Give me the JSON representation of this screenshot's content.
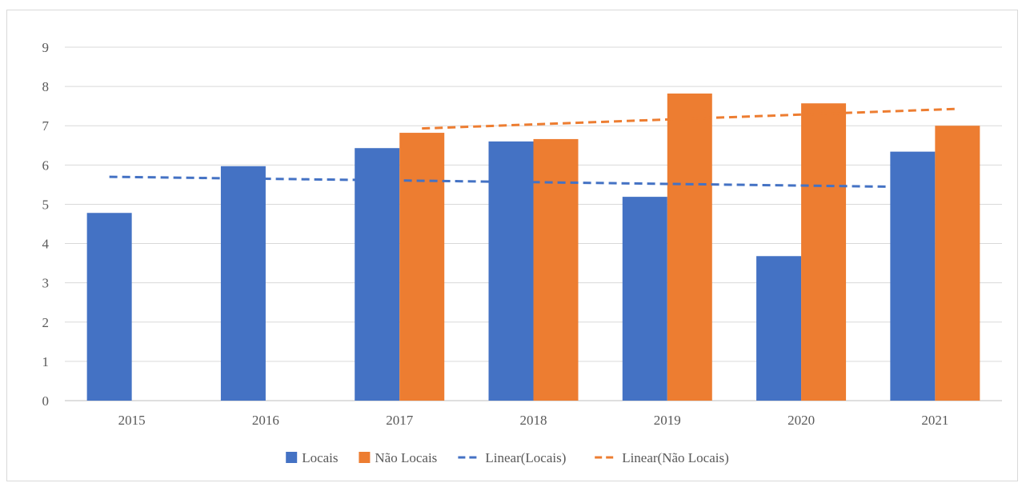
{
  "chart_data": {
    "type": "bar",
    "title": "",
    "xlabel": "",
    "ylabel": "",
    "categories": [
      "2015",
      "2016",
      "2017",
      "2018",
      "2019",
      "2020",
      "2021"
    ],
    "ylim": [
      0,
      9
    ],
    "yticks": [
      "0",
      "1",
      "2",
      "3",
      "4",
      "5",
      "6",
      "7",
      "8",
      "9"
    ],
    "grid": true,
    "legend_position": "bottom",
    "series": [
      {
        "name": "Locais",
        "color": "#4472c4",
        "values": [
          4.78,
          5.97,
          6.43,
          6.6,
          5.19,
          3.68,
          6.34
        ]
      },
      {
        "name": "Não Locais",
        "color": "#ed7d31",
        "values": [
          null,
          null,
          6.82,
          6.66,
          7.82,
          7.57,
          7.0
        ]
      }
    ],
    "trendlines": [
      {
        "name": "Linear(Locais)",
        "of": "Locais",
        "type": "linear",
        "style": "dashed",
        "color": "#4472c4",
        "start": 5.7,
        "end": 5.44
      },
      {
        "name": "Linear(Não Locais)",
        "of": "Não Locais",
        "type": "linear",
        "style": "dashed",
        "color": "#ed7d31",
        "start": 6.93,
        "end": 7.43
      }
    ]
  }
}
